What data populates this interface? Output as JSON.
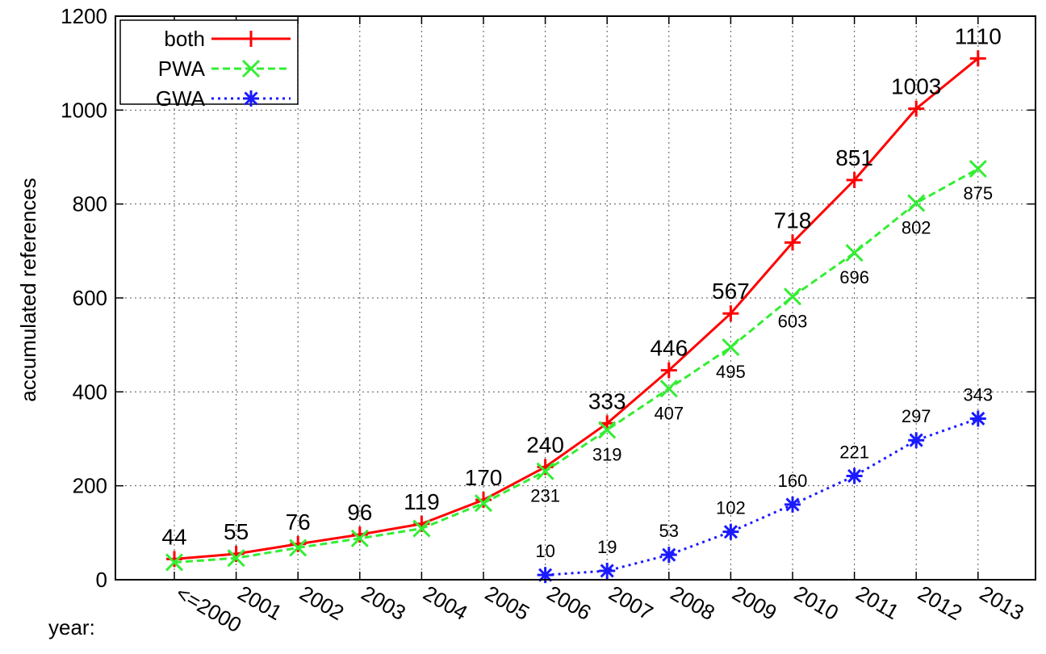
{
  "chart_data": {
    "type": "line",
    "categories": [
      "<=2000",
      "2001",
      "2002",
      "2003",
      "2004",
      "2005",
      "2006",
      "2007",
      "2008",
      "2009",
      "2010",
      "2011",
      "2012",
      "2013"
    ],
    "x_prefix": "year:",
    "ylabel": "accumulated references",
    "ylim": [
      0,
      1200
    ],
    "yticks": [
      "0",
      "200",
      "400",
      "600",
      "800",
      "1000",
      "1200"
    ],
    "grid": true,
    "legend_position": "top-left",
    "series": [
      {
        "name": "both",
        "color": "#ff0000",
        "marker": "plus",
        "line_style": "solid",
        "values": [
          44,
          55,
          76,
          96,
          119,
          170,
          240,
          333,
          446,
          567,
          718,
          851,
          1003,
          1110
        ],
        "labels": [
          "44",
          "55",
          "76",
          "96",
          "119",
          "170",
          "240",
          "333",
          "446",
          "567",
          "718",
          "851",
          "1003",
          "1110"
        ]
      },
      {
        "name": "PWA",
        "color": "#33ee33",
        "marker": "cross",
        "line_style": "dashed",
        "values": [
          37,
          46,
          68,
          88,
          109,
          163,
          231,
          319,
          407,
          495,
          603,
          696,
          802,
          875
        ],
        "labels": [
          "",
          "",
          "",
          "",
          "",
          "",
          "231",
          "319",
          "407",
          "495",
          "603",
          "696",
          "802",
          "875"
        ]
      },
      {
        "name": "GWA",
        "color": "#1a1aff",
        "marker": "star",
        "line_style": "dotted",
        "values": [
          null,
          null,
          null,
          null,
          null,
          null,
          10,
          19,
          53,
          102,
          160,
          221,
          297,
          343
        ],
        "labels": [
          "",
          "",
          "",
          "",
          "",
          "",
          "10",
          "19",
          "53",
          "102",
          "160",
          "221",
          "297",
          "343"
        ]
      }
    ]
  }
}
